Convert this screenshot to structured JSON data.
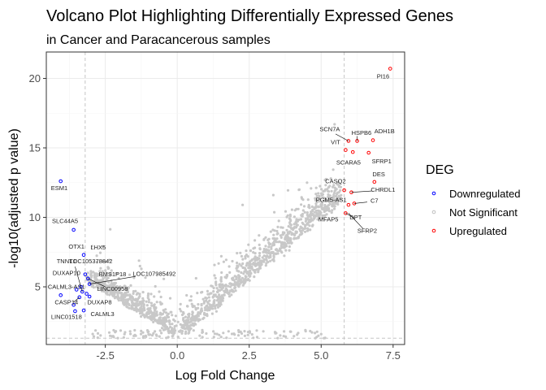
{
  "chart_data": {
    "type": "scatter",
    "title": "Volcano Plot Highlighting Differentially Expressed Genes",
    "subtitle": "in Cancer and Paracancerous samples",
    "xlabel": "Log Fold Change",
    "ylabel": "-log10(adjusted p value)",
    "xlim": [
      -4.55,
      7.9
    ],
    "ylim": [
      0.85,
      21.9
    ],
    "x_ticks": [
      "-2.5",
      "0.0",
      "2.5",
      "5.0",
      "7.5"
    ],
    "x_tick_values": [
      -2.5,
      0,
      2.5,
      5,
      7.5
    ],
    "y_ticks": [
      "5",
      "10",
      "15",
      "20"
    ],
    "y_tick_values": [
      5,
      10,
      15,
      20
    ],
    "grid": true,
    "thresholds": {
      "logfc": [
        -3.2,
        5.8
      ],
      "padj_y": 1.3
    },
    "legend": {
      "title": "DEG",
      "placement": "right",
      "entries": [
        {
          "name": "Downregulated",
          "color": "#0000ff"
        },
        {
          "name": "Not Significant",
          "color": "#bebebe"
        },
        {
          "name": "Upregulated",
          "color": "#ff0000"
        }
      ]
    },
    "series": [
      {
        "name": "Downregulated",
        "color": "#0000ff",
        "points": [
          {
            "x": -4.05,
            "y": 12.6
          },
          {
            "x": -3.6,
            "y": 9.1
          },
          {
            "x": -3.25,
            "y": 7.3
          },
          {
            "x": -3.2,
            "y": 5.9
          },
          {
            "x": -3.1,
            "y": 5.6
          },
          {
            "x": -3.05,
            "y": 5.2
          },
          {
            "x": -3.35,
            "y": 5.0
          },
          {
            "x": -3.5,
            "y": 4.8
          },
          {
            "x": -3.3,
            "y": 4.65
          },
          {
            "x": -3.15,
            "y": 4.5
          },
          {
            "x": -3.05,
            "y": 4.3
          },
          {
            "x": -4.05,
            "y": 4.4
          },
          {
            "x": -3.4,
            "y": 4.25
          },
          {
            "x": -3.6,
            "y": 3.7
          },
          {
            "x": -3.55,
            "y": 3.25
          },
          {
            "x": -3.25,
            "y": 3.3
          }
        ]
      },
      {
        "name": "Upregulated",
        "color": "#ff0000",
        "points": [
          {
            "x": 7.4,
            "y": 20.7
          },
          {
            "x": 5.95,
            "y": 15.5
          },
          {
            "x": 6.25,
            "y": 15.5
          },
          {
            "x": 6.8,
            "y": 15.55
          },
          {
            "x": 5.85,
            "y": 14.85
          },
          {
            "x": 6.1,
            "y": 14.7
          },
          {
            "x": 6.65,
            "y": 14.65
          },
          {
            "x": 6.85,
            "y": 12.55
          },
          {
            "x": 5.8,
            "y": 11.95
          },
          {
            "x": 6.05,
            "y": 11.8
          },
          {
            "x": 6.15,
            "y": 11.0
          },
          {
            "x": 5.95,
            "y": 10.9
          },
          {
            "x": 5.85,
            "y": 10.3
          }
        ]
      }
    ],
    "gene_labels": [
      {
        "text": "PI16",
        "x": 7.15,
        "y": 20.0
      },
      {
        "text": "SCN7A",
        "x": 5.3,
        "y": 16.2
      },
      {
        "text": "HSPB6",
        "x": 6.4,
        "y": 15.95
      },
      {
        "text": "ADH1B",
        "x": 7.2,
        "y": 16.05
      },
      {
        "text": "VIT",
        "x": 5.5,
        "y": 15.25
      },
      {
        "text": "SFRP1",
        "x": 7.1,
        "y": 13.9
      },
      {
        "text": "SCARA5",
        "x": 5.95,
        "y": 13.8
      },
      {
        "text": "ESM1",
        "x": -4.1,
        "y": 11.95
      },
      {
        "text": "DES",
        "x": 7.0,
        "y": 12.95
      },
      {
        "text": "CASQ2",
        "x": 5.5,
        "y": 12.45
      },
      {
        "text": "CHRDL1",
        "x": 7.15,
        "y": 11.85
      },
      {
        "text": "PGM5-AS1",
        "x": 5.35,
        "y": 11.1
      },
      {
        "text": "C7",
        "x": 6.85,
        "y": 11.05
      },
      {
        "text": "SLC44A5",
        "x": -3.9,
        "y": 9.6
      },
      {
        "text": "MFAP5",
        "x": 5.25,
        "y": 9.7
      },
      {
        "text": "DPT",
        "x": 6.2,
        "y": 9.85
      },
      {
        "text": "SFRP2",
        "x": 6.6,
        "y": 8.9
      },
      {
        "text": "OTX1",
        "x": -3.5,
        "y": 7.75
      },
      {
        "text": "LHX5",
        "x": -2.75,
        "y": 7.7
      },
      {
        "text": "LOC105378842",
        "x": -3.0,
        "y": 6.7
      },
      {
        "text": "TNNT1",
        "x": -3.85,
        "y": 6.7
      },
      {
        "text": "DUXAP10",
        "x": -3.85,
        "y": 5.85
      },
      {
        "text": "BMS1P18",
        "x": -2.25,
        "y": 5.75
      },
      {
        "text": "LOC107985492",
        "x": -0.8,
        "y": 5.8
      },
      {
        "text": "CALML3-AS1",
        "x": -3.85,
        "y": 4.85
      },
      {
        "text": "LINC00958",
        "x": -2.25,
        "y": 4.7
      },
      {
        "text": "CASP14",
        "x": -3.85,
        "y": 3.75
      },
      {
        "text": "DUXAP8",
        "x": -2.7,
        "y": 3.75
      },
      {
        "text": "LINC01518",
        "x": -3.85,
        "y": 2.7
      },
      {
        "text": "CALML3",
        "x": -2.6,
        "y": 2.9
      }
    ],
    "label_leaders": [
      {
        "x1": 6.25,
        "y1": 15.5,
        "x2": 6.25,
        "y2": 15.85
      },
      {
        "x1": 5.95,
        "y1": 15.5,
        "x2": 5.5,
        "y2": 16.0
      },
      {
        "x1": 6.05,
        "y1": 11.8,
        "x2": 6.75,
        "y2": 11.9
      },
      {
        "x1": 6.15,
        "y1": 11.0,
        "x2": 6.6,
        "y2": 11.1
      },
      {
        "x1": 5.85,
        "y1": 10.3,
        "x2": 6.15,
        "y2": 9.95
      },
      {
        "x1": 5.95,
        "y1": 10.3,
        "x2": 6.45,
        "y2": 9.2
      },
      {
        "x1": -3.05,
        "y1": 5.2,
        "x2": -1.45,
        "y2": 5.75
      },
      {
        "x1": -3.3,
        "y1": 4.65,
        "x2": -3.55,
        "y2": 6.45
      },
      {
        "x1": -3.4,
        "y1": 4.25,
        "x2": -3.6,
        "y2": 3.9
      },
      {
        "x1": -3.1,
        "y1": 5.6,
        "x2": -2.5,
        "y2": 5.0
      }
    ]
  }
}
